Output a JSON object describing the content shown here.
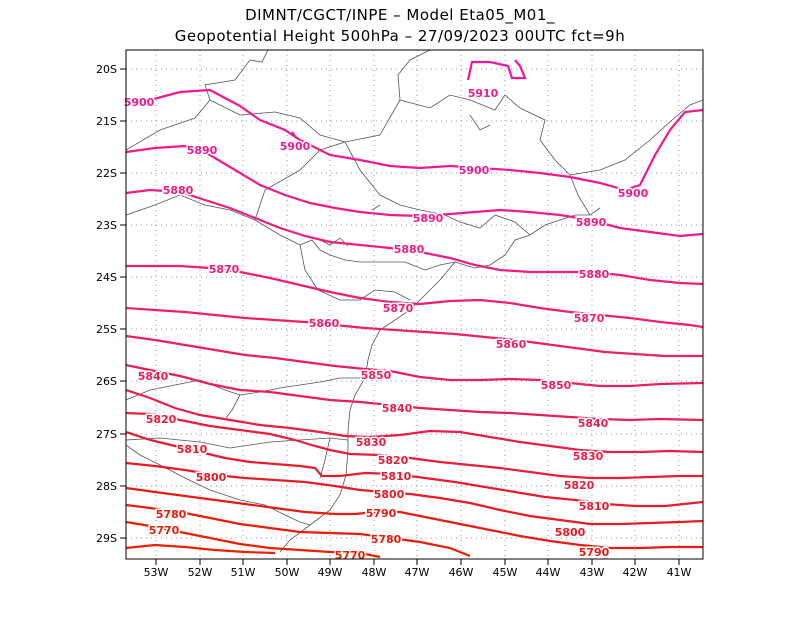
{
  "header": {
    "line1": "DIMNT/CGCT/INPE –   Model Eta05_M01_",
    "line2": "Geopotential Height 500hPa –   27/09/2023 00UTC fct=9h"
  },
  "axes": {
    "lat_labels": [
      "20S",
      "21S",
      "22S",
      "23S",
      "24S",
      "25S",
      "26S",
      "27S",
      "28S",
      "29S"
    ],
    "lon_labels": [
      "53W",
      "52W",
      "51W",
      "50W",
      "49W",
      "48W",
      "47W",
      "46W",
      "45W",
      "44W",
      "43W",
      "42W",
      "41W"
    ]
  },
  "colors": {
    "frame": "#000000",
    "grid": "#999999",
    "coast": "#555555"
  },
  "contours": [
    {
      "value": "5910",
      "color": "#f0189a",
      "labels": [
        {
          "text": "5910"
        }
      ]
    },
    {
      "value": "5900",
      "color": "#f01893",
      "labels": [
        {
          "text": "5900"
        },
        {
          "text": "5900"
        },
        {
          "text": "5900"
        },
        {
          "text": "5900"
        }
      ]
    },
    {
      "value": "5890",
      "color": "#f01a8a",
      "labels": [
        {
          "text": "5890"
        },
        {
          "text": "5890"
        },
        {
          "text": "5890"
        }
      ]
    },
    {
      "value": "5880",
      "color": "#f01c80",
      "labels": [
        {
          "text": "5880"
        },
        {
          "text": "5880"
        },
        {
          "text": "5880"
        }
      ]
    },
    {
      "value": "5870",
      "color": "#ef1d75",
      "labels": [
        {
          "text": "5870"
        },
        {
          "text": "5870"
        },
        {
          "text": "5870"
        }
      ]
    },
    {
      "value": "5860",
      "color": "#ed1e6a",
      "labels": [
        {
          "text": "5860"
        },
        {
          "text": "5860"
        }
      ]
    },
    {
      "value": "5850",
      "color": "#eb1e5e",
      "labels": [
        {
          "text": "5850"
        },
        {
          "text": "5850"
        }
      ]
    },
    {
      "value": "5840",
      "color": "#ea1e52",
      "labels": [
        {
          "text": "5840"
        },
        {
          "text": "5840"
        },
        {
          "text": "5840"
        }
      ]
    },
    {
      "value": "5830",
      "color": "#e91d46",
      "labels": [
        {
          "text": "5830"
        },
        {
          "text": "5830"
        }
      ]
    },
    {
      "value": "5820",
      "color": "#e91c3a",
      "labels": [
        {
          "text": "5820"
        },
        {
          "text": "5820"
        },
        {
          "text": "5820"
        }
      ]
    },
    {
      "value": "5810",
      "color": "#e81b2e",
      "labels": [
        {
          "text": "5810"
        },
        {
          "text": "5810"
        },
        {
          "text": "5810"
        }
      ]
    },
    {
      "value": "5800",
      "color": "#e81a22",
      "labels": [
        {
          "text": "5800"
        },
        {
          "text": "5800"
        },
        {
          "text": "5800"
        }
      ]
    },
    {
      "value": "5790",
      "color": "#e81b14",
      "labels": [
        {
          "text": "5790"
        },
        {
          "text": "5790"
        }
      ]
    },
    {
      "value": "5780",
      "color": "#e91c08",
      "labels": [
        {
          "text": "5780"
        },
        {
          "text": "5780"
        }
      ]
    },
    {
      "value": "5770",
      "color": "#ea2000",
      "labels": [
        {
          "text": "5770"
        },
        {
          "text": "5770"
        }
      ]
    }
  ]
}
